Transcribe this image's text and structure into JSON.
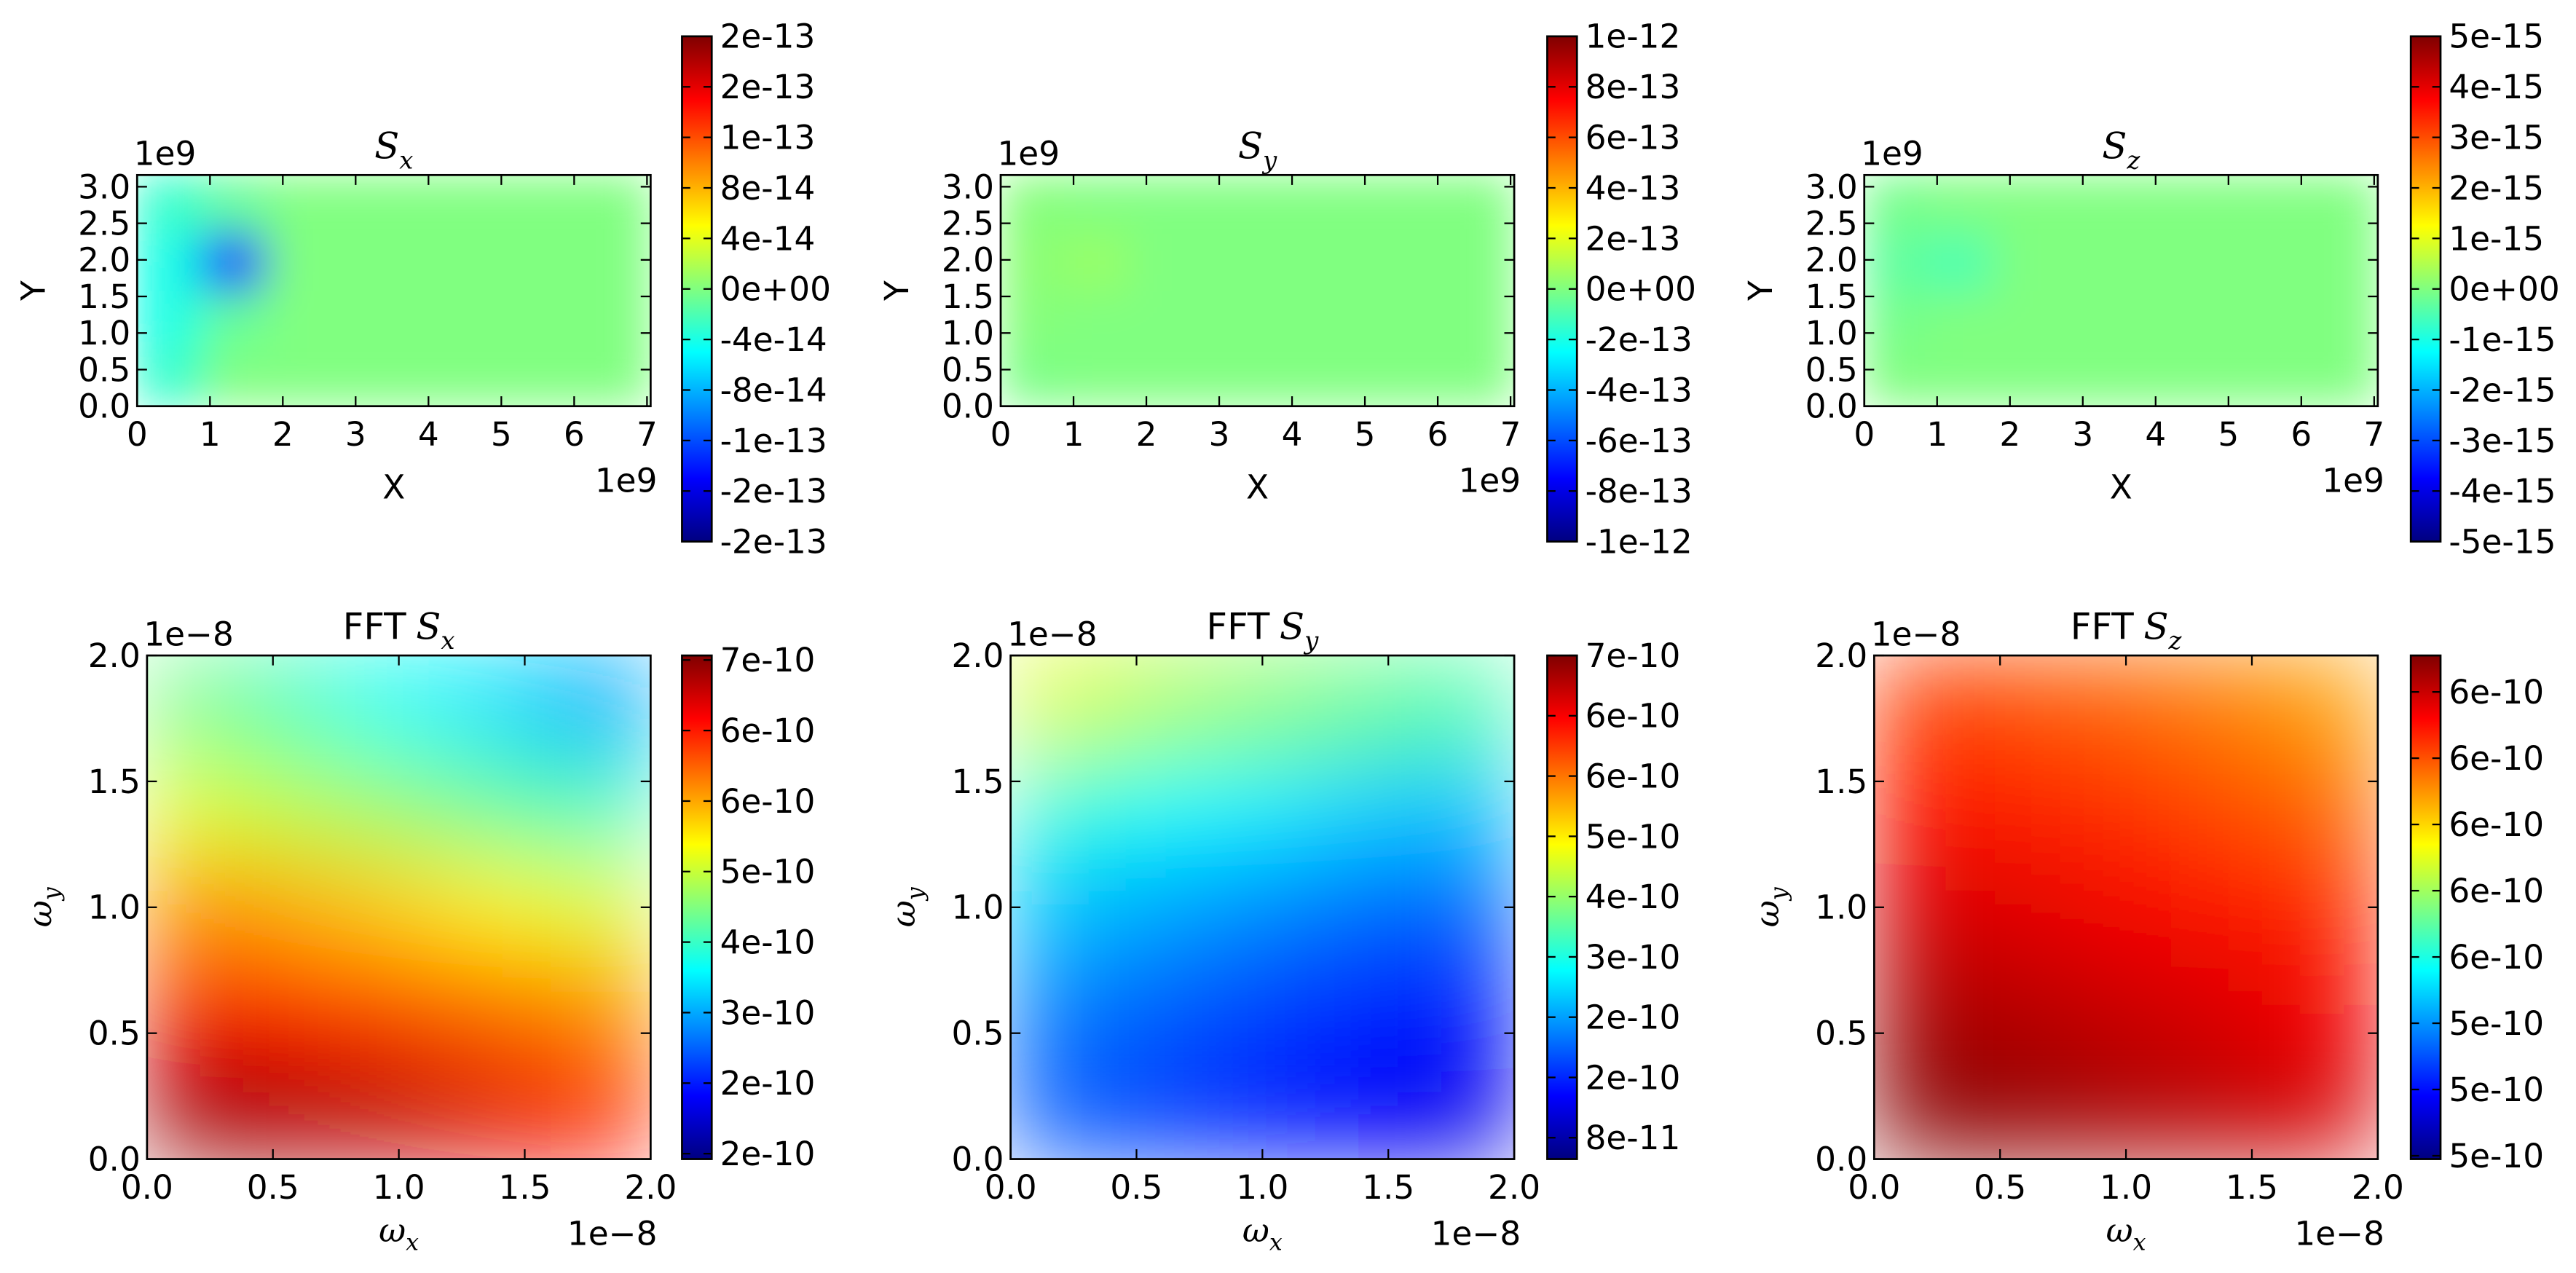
{
  "chart_data": [
    {
      "type": "heatmap",
      "title": "S",
      "title_sub": "x",
      "xlabel": "X",
      "ylabel": "Y",
      "x_offset": "1e9",
      "y_offset": "1e9",
      "colormap": "jet",
      "xlim": [
        0,
        7.05
      ],
      "ylim": [
        0,
        3.16
      ],
      "xticks": [
        0,
        1,
        2,
        3,
        4,
        5,
        6,
        7
      ],
      "yticks": [
        {
          "value": 0,
          "label": "0.0"
        },
        0.5,
        {
          "value": 1,
          "label": "1.0"
        },
        1.5,
        {
          "value": 2,
          "label": "2.0"
        },
        2.5,
        {
          "value": 3,
          "label": "3.0"
        }
      ],
      "z": [
        [
          -3e-14,
          0,
          0,
          0,
          0,
          0,
          0,
          0
        ],
        [
          -4e-14,
          -1e-14,
          0,
          0,
          0,
          0,
          0,
          0
        ],
        [
          -4e-14,
          -1.4e-13,
          0,
          0,
          0,
          0,
          0,
          0
        ],
        [
          -3e-14,
          -1e-14,
          0,
          0,
          0,
          0,
          0,
          0
        ]
      ],
      "clim": [
        -2e-13,
        2e-13
      ],
      "cticks": [
        {
          "value": 2e-13,
          "label": "2e-13"
        },
        {
          "value": 1.6e-13,
          "label": "2e-13"
        },
        {
          "value": 1.2e-13,
          "label": "1e-13"
        },
        {
          "value": 8e-14,
          "label": "8e-14"
        },
        {
          "value": 4e-14,
          "label": "4e-14"
        },
        {
          "value": 0,
          "label": "0e+00"
        },
        {
          "value": -4e-14,
          "label": "-4e-14"
        },
        {
          "value": -8e-14,
          "label": "-8e-14"
        },
        {
          "value": -1.2e-13,
          "label": "-1e-13"
        },
        {
          "value": -1.6e-13,
          "label": "-2e-13"
        },
        {
          "value": -2e-13,
          "label": "-2e-13"
        }
      ]
    },
    {
      "type": "heatmap",
      "title": "S",
      "title_sub": "y",
      "xlabel": "X",
      "ylabel": "Y",
      "x_offset": "1e9",
      "y_offset": "1e9",
      "colormap": "jet",
      "xlim": [
        0,
        7.05
      ],
      "ylim": [
        0,
        3.16
      ],
      "xticks": [
        0,
        1,
        2,
        3,
        4,
        5,
        6,
        7
      ],
      "yticks": [
        {
          "value": 0,
          "label": "0.0"
        },
        0.5,
        {
          "value": 1,
          "label": "1.0"
        },
        1.5,
        {
          "value": 2,
          "label": "2.0"
        },
        2.5,
        {
          "value": 3,
          "label": "3.0"
        }
      ],
      "z": [
        [
          -1e-14,
          0,
          0,
          0,
          0,
          0,
          0,
          0
        ],
        [
          1e-14,
          0,
          0,
          0,
          0,
          0,
          0,
          0
        ],
        [
          2e-14,
          5e-14,
          0,
          0,
          0,
          0,
          0,
          0
        ],
        [
          1e-14,
          0,
          0,
          0,
          0,
          0,
          0,
          0
        ]
      ],
      "clim": [
        -1e-12,
        1e-12
      ],
      "cticks": [
        {
          "value": 1e-12,
          "label": "1e-12"
        },
        {
          "value": 8e-13,
          "label": "8e-13"
        },
        {
          "value": 6e-13,
          "label": "6e-13"
        },
        {
          "value": 4e-13,
          "label": "4e-13"
        },
        {
          "value": 2e-13,
          "label": "2e-13"
        },
        {
          "value": 0,
          "label": "0e+00"
        },
        {
          "value": -2e-13,
          "label": "-2e-13"
        },
        {
          "value": -4e-13,
          "label": "-4e-13"
        },
        {
          "value": -6e-13,
          "label": "-6e-13"
        },
        {
          "value": -8e-13,
          "label": "-8e-13"
        },
        {
          "value": -1e-12,
          "label": "-1e-12"
        }
      ]
    },
    {
      "type": "heatmap",
      "title": "S",
      "title_sub": "z",
      "xlabel": "X",
      "ylabel": "Y",
      "x_offset": "1e9",
      "y_offset": "1e9",
      "colormap": "jet",
      "xlim": [
        0,
        7.05
      ],
      "ylim": [
        0,
        3.16
      ],
      "xticks": [
        0,
        1,
        2,
        3,
        4,
        5,
        6,
        7
      ],
      "yticks": [
        {
          "value": 0,
          "label": "0.0"
        },
        0.5,
        {
          "value": 1,
          "label": "1.0"
        },
        1.5,
        {
          "value": 2,
          "label": "2.0"
        },
        2.5,
        {
          "value": 3,
          "label": "3.0"
        }
      ],
      "z": [
        [
          0,
          0,
          0,
          0,
          0,
          0,
          0,
          0
        ],
        [
          -1e-16,
          0,
          0,
          0,
          0,
          0,
          0,
          0
        ],
        [
          -3e-16,
          -5e-16,
          0,
          0,
          0,
          0,
          0,
          0
        ],
        [
          -1e-16,
          0,
          0,
          0,
          0,
          0,
          0,
          0
        ]
      ],
      "clim": [
        -5e-15,
        5e-15
      ],
      "cticks": [
        {
          "value": 5e-15,
          "label": "5e-15"
        },
        {
          "value": 4e-15,
          "label": "4e-15"
        },
        {
          "value": 3e-15,
          "label": "3e-15"
        },
        {
          "value": 2e-15,
          "label": "2e-15"
        },
        {
          "value": 1e-15,
          "label": "1e-15"
        },
        {
          "value": 0,
          "label": "0e+00"
        },
        {
          "value": -1e-15,
          "label": "-1e-15"
        },
        {
          "value": -2e-15,
          "label": "-2e-15"
        },
        {
          "value": -3e-15,
          "label": "-3e-15"
        },
        {
          "value": -4e-15,
          "label": "-4e-15"
        },
        {
          "value": -5e-15,
          "label": "-5e-15"
        }
      ]
    },
    {
      "type": "heatmap",
      "title_prefix": "FFT",
      "title": "S",
      "title_sub": "x",
      "xlabel": "ω",
      "xlabel_sub": "x",
      "ylabel": "ω",
      "ylabel_sub": "y",
      "x_offset": "1e−8",
      "y_offset": "1e−8",
      "colormap": "jet",
      "xlim": [
        0,
        2
      ],
      "ylim": [
        0,
        2
      ],
      "xticks": [
        {
          "value": 0,
          "label": "0.0"
        },
        0.5,
        {
          "value": 1,
          "label": "1.0"
        },
        1.5,
        {
          "value": 2,
          "label": "2.0"
        }
      ],
      "yticks": [
        {
          "value": 0,
          "label": "0.0"
        },
        0.5,
        {
          "value": 1,
          "label": "1.0"
        },
        1.5,
        {
          "value": 2,
          "label": "2.0"
        }
      ],
      "z": [
        [
          7e-10,
          6.9e-10,
          6.8e-10,
          6.6e-10,
          6.4e-10
        ],
        [
          6.5e-10,
          6.3e-10,
          6.1e-10,
          5.9e-10,
          5.7e-10
        ],
        [
          5.7e-10,
          5.5e-10,
          5.3e-10,
          5.1e-10,
          4.9e-10
        ],
        [
          4.9e-10,
          4.7e-10,
          4.5e-10,
          4.2e-10,
          4e-10
        ],
        [
          4.3e-10,
          4e-10,
          3.7e-10,
          3.5e-10,
          3.2e-10
        ]
      ],
      "clim": [
        1.58e-10,
        7.15e-10
      ],
      "cticks": [
        {
          "value": 7.1e-10,
          "label": "7e-10"
        },
        {
          "value": 6.32e-10,
          "label": "6e-10"
        },
        {
          "value": 5.54e-10,
          "label": "6e-10"
        },
        {
          "value": 4.76e-10,
          "label": "5e-10"
        },
        {
          "value": 3.98e-10,
          "label": "4e-10"
        },
        {
          "value": 3.2e-10,
          "label": "3e-10"
        },
        {
          "value": 2.42e-10,
          "label": "2e-10"
        },
        {
          "value": 1.64e-10,
          "label": "2e-10"
        }
      ]
    },
    {
      "type": "heatmap",
      "title_prefix": "FFT",
      "title": "S",
      "title_sub": "y",
      "xlabel": "ω",
      "xlabel_sub": "x",
      "ylabel": "ω",
      "ylabel_sub": "y",
      "x_offset": "1e−8",
      "y_offset": "1e−8",
      "colormap": "jet",
      "xlim": [
        0,
        2
      ],
      "ylim": [
        0,
        2
      ],
      "xticks": [
        {
          "value": 0,
          "label": "0.0"
        },
        0.5,
        {
          "value": 1,
          "label": "1.0"
        },
        1.5,
        {
          "value": 2,
          "label": "2.0"
        }
      ],
      "yticks": [
        {
          "value": 0,
          "label": "0.0"
        },
        0.5,
        {
          "value": 1,
          "label": "1.0"
        },
        1.5,
        {
          "value": 2,
          "label": "2.0"
        }
      ],
      "z": [
        [
          1.9e-10,
          1.7e-10,
          1.5e-10,
          1.3e-10,
          1.2e-10
        ],
        [
          2.1e-10,
          1.9e-10,
          1.7e-10,
          1.5e-10,
          1.4e-10
        ],
        [
          2.6e-10,
          2.4e-10,
          2.2e-10,
          2e-10,
          1.9e-10
        ],
        [
          3.2e-10,
          3e-10,
          2.9e-10,
          2.7e-10,
          2.6e-10
        ],
        [
          4.4e-10,
          4.1e-10,
          3.9e-10,
          3.7e-10,
          3.5e-10
        ]
      ],
      "clim": [
        5e-11,
        7.1e-10
      ],
      "cticks": [
        {
          "value": 7.1e-10,
          "label": "7e-10"
        },
        {
          "value": 6.31e-10,
          "label": "6e-10"
        },
        {
          "value": 5.52e-10,
          "label": "6e-10"
        },
        {
          "value": 4.73e-10,
          "label": "5e-10"
        },
        {
          "value": 3.94e-10,
          "label": "4e-10"
        },
        {
          "value": 3.15e-10,
          "label": "3e-10"
        },
        {
          "value": 2.36e-10,
          "label": "2e-10"
        },
        {
          "value": 1.57e-10,
          "label": "2e-10"
        },
        {
          "value": 7.8e-11,
          "label": "8e-11"
        }
      ]
    },
    {
      "type": "heatmap",
      "title_prefix": "FFT",
      "title": "S",
      "title_sub": "z",
      "xlabel": "ω",
      "xlabel_sub": "x",
      "ylabel": "ω",
      "ylabel_sub": "y",
      "x_offset": "1e−8",
      "y_offset": "1e−8",
      "colormap": "jet",
      "xlim": [
        0,
        2
      ],
      "ylim": [
        0,
        2
      ],
      "xticks": [
        {
          "value": 0,
          "label": "0.0"
        },
        0.5,
        {
          "value": 1,
          "label": "1.0"
        },
        1.5,
        {
          "value": 2,
          "label": "2.0"
        }
      ],
      "yticks": [
        {
          "value": 0,
          "label": "0.0"
        },
        0.5,
        {
          "value": 1,
          "label": "1.0"
        },
        1.5,
        {
          "value": 2,
          "label": "2.0"
        }
      ],
      "z": [
        [
          6.45e-10,
          6.43e-10,
          6.4e-10,
          6.37e-10,
          6.33e-10
        ],
        [
          6.4e-10,
          6.38e-10,
          6.35e-10,
          6.32e-10,
          6.28e-10
        ],
        [
          6.33e-10,
          6.31e-10,
          6.28e-10,
          6.25e-10,
          6.21e-10
        ],
        [
          6.25e-10,
          6.23e-10,
          6.2e-10,
          6.16e-10,
          6.12e-10
        ],
        [
          6.18e-10,
          6.15e-10,
          6.12e-10,
          6.08e-10,
          6.03e-10
        ]
      ],
      "clim": [
        4.94e-10,
        6.46e-10
      ],
      "cticks": [
        {
          "value": 6.35e-10,
          "label": "6e-10"
        },
        {
          "value": 6.15e-10,
          "label": "6e-10"
        },
        {
          "value": 5.95e-10,
          "label": "6e-10"
        },
        {
          "value": 5.75e-10,
          "label": "6e-10"
        },
        {
          "value": 5.55e-10,
          "label": "6e-10"
        },
        {
          "value": 5.35e-10,
          "label": "5e-10"
        },
        {
          "value": 5.15e-10,
          "label": "5e-10"
        },
        {
          "value": 4.95e-10,
          "label": "5e-10"
        }
      ]
    }
  ]
}
